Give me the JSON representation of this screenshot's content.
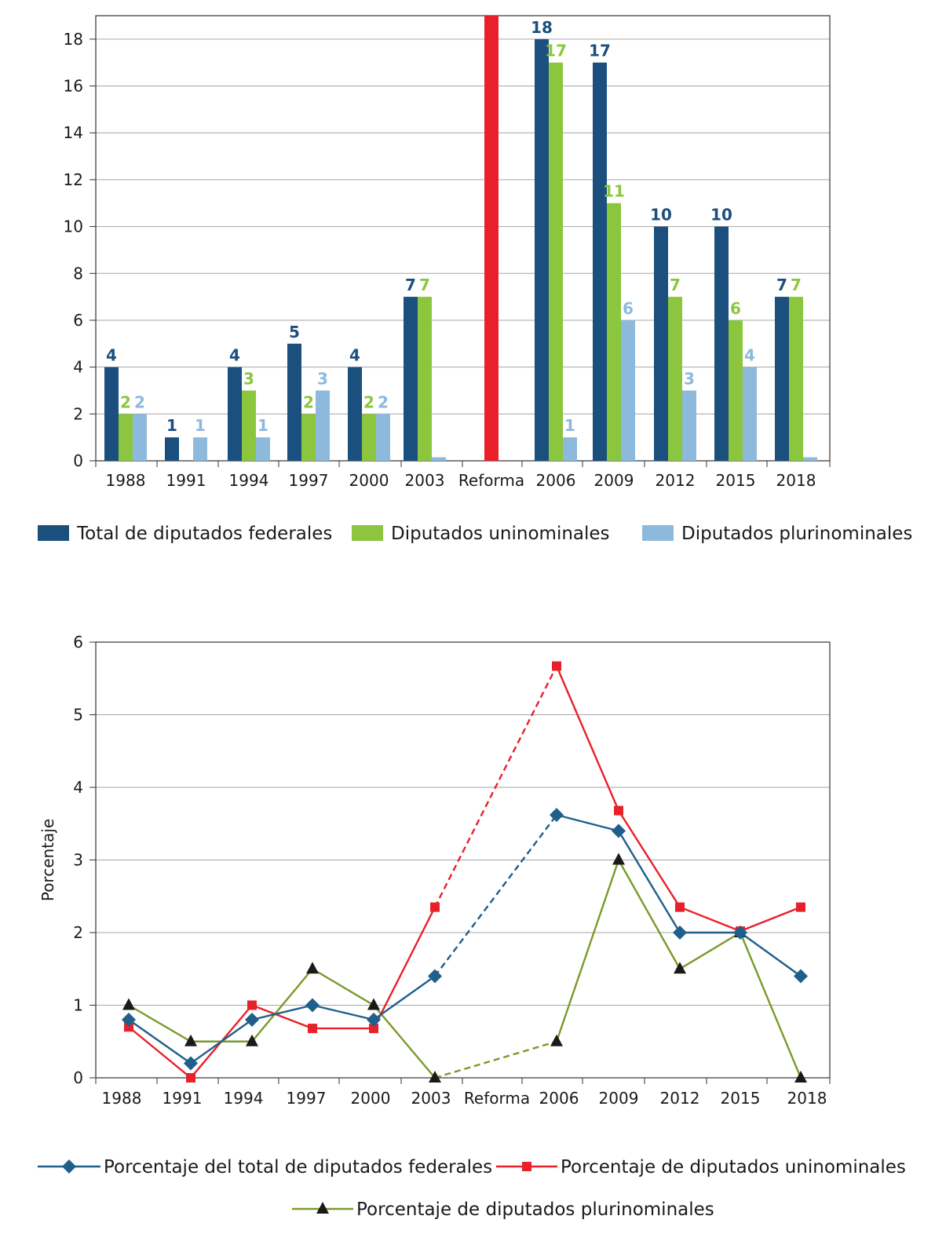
{
  "colors": {
    "total": "#1b4f7d",
    "uninominal": "#8cc63f",
    "plurinominal": "#8db9dd",
    "reforma": "#e8202a",
    "line_total": "#1f5f8b",
    "line_uninominal": "#e8202a",
    "line_plurinominal": "#7a9a2a",
    "grid": "#a6a6a6"
  },
  "chart_data": [
    {
      "type": "bar",
      "categories": [
        "1988",
        "1991",
        "1994",
        "1997",
        "2000",
        "2003",
        "Reforma",
        "2006",
        "2009",
        "2012",
        "2015",
        "2018"
      ],
      "ylim": [
        0,
        19
      ],
      "yticks": [
        "0",
        "2",
        "4",
        "6",
        "8",
        "10",
        "12",
        "14",
        "16",
        "18"
      ],
      "xlabel": "",
      "ylabel": "",
      "grid": true,
      "legend_position": "bottom",
      "series": [
        {
          "name": "Total de diputados federales",
          "values": [
            4,
            1,
            4,
            5,
            4,
            7,
            null,
            18,
            17,
            10,
            10,
            7
          ],
          "labels": [
            "4",
            "1",
            "4",
            "5",
            "4",
            "7",
            "",
            "18",
            "17",
            "10",
            "10",
            "7"
          ]
        },
        {
          "name": "Diputados uninominales",
          "values": [
            2,
            0,
            3,
            2,
            2,
            7,
            null,
            17,
            11,
            7,
            6,
            7
          ],
          "labels": [
            "2",
            "",
            "3",
            "2",
            "2",
            "7",
            "",
            "17",
            "11",
            "7",
            "6",
            "7"
          ]
        },
        {
          "name": "Diputados plurinominales",
          "values": [
            2,
            1,
            1,
            3,
            2,
            0.15,
            null,
            1,
            6,
            3,
            4,
            0.15
          ],
          "labels": [
            "2",
            "1",
            "1",
            "3",
            "2",
            "",
            "",
            "1",
            "6",
            "3",
            "4",
            ""
          ]
        }
      ],
      "reforma_bar": {
        "category": "Reforma",
        "value": 19
      }
    },
    {
      "type": "line",
      "categories": [
        "1988",
        "1991",
        "1994",
        "1997",
        "2000",
        "2003",
        "Reforma",
        "2006",
        "2009",
        "2012",
        "2015",
        "2018"
      ],
      "ylim": [
        0,
        6
      ],
      "yticks": [
        "0",
        "1",
        "2",
        "3",
        "4",
        "5",
        "6"
      ],
      "xlabel": "",
      "ylabel": "Porcentaje",
      "grid": true,
      "legend_position": "bottom",
      "note": "segment 2003–2006 dashed",
      "series": [
        {
          "name": "Porcentaje del total de diputados federales",
          "marker": "diamond",
          "values": [
            0.8,
            0.2,
            0.8,
            1.0,
            0.8,
            1.4,
            null,
            3.62,
            3.4,
            2.0,
            2.0,
            1.4
          ]
        },
        {
          "name": "Porcentaje de diputados uninominales",
          "marker": "square",
          "values": [
            0.7,
            0.0,
            1.0,
            0.68,
            0.68,
            2.35,
            null,
            5.67,
            3.68,
            2.35,
            2.02,
            2.35
          ]
        },
        {
          "name": "Porcentaje de diputados plurinominales",
          "marker": "triangle",
          "values": [
            1.0,
            0.5,
            0.5,
            1.5,
            1.0,
            0.0,
            null,
            0.5,
            3.0,
            1.5,
            2.0,
            0.0
          ]
        }
      ]
    }
  ]
}
